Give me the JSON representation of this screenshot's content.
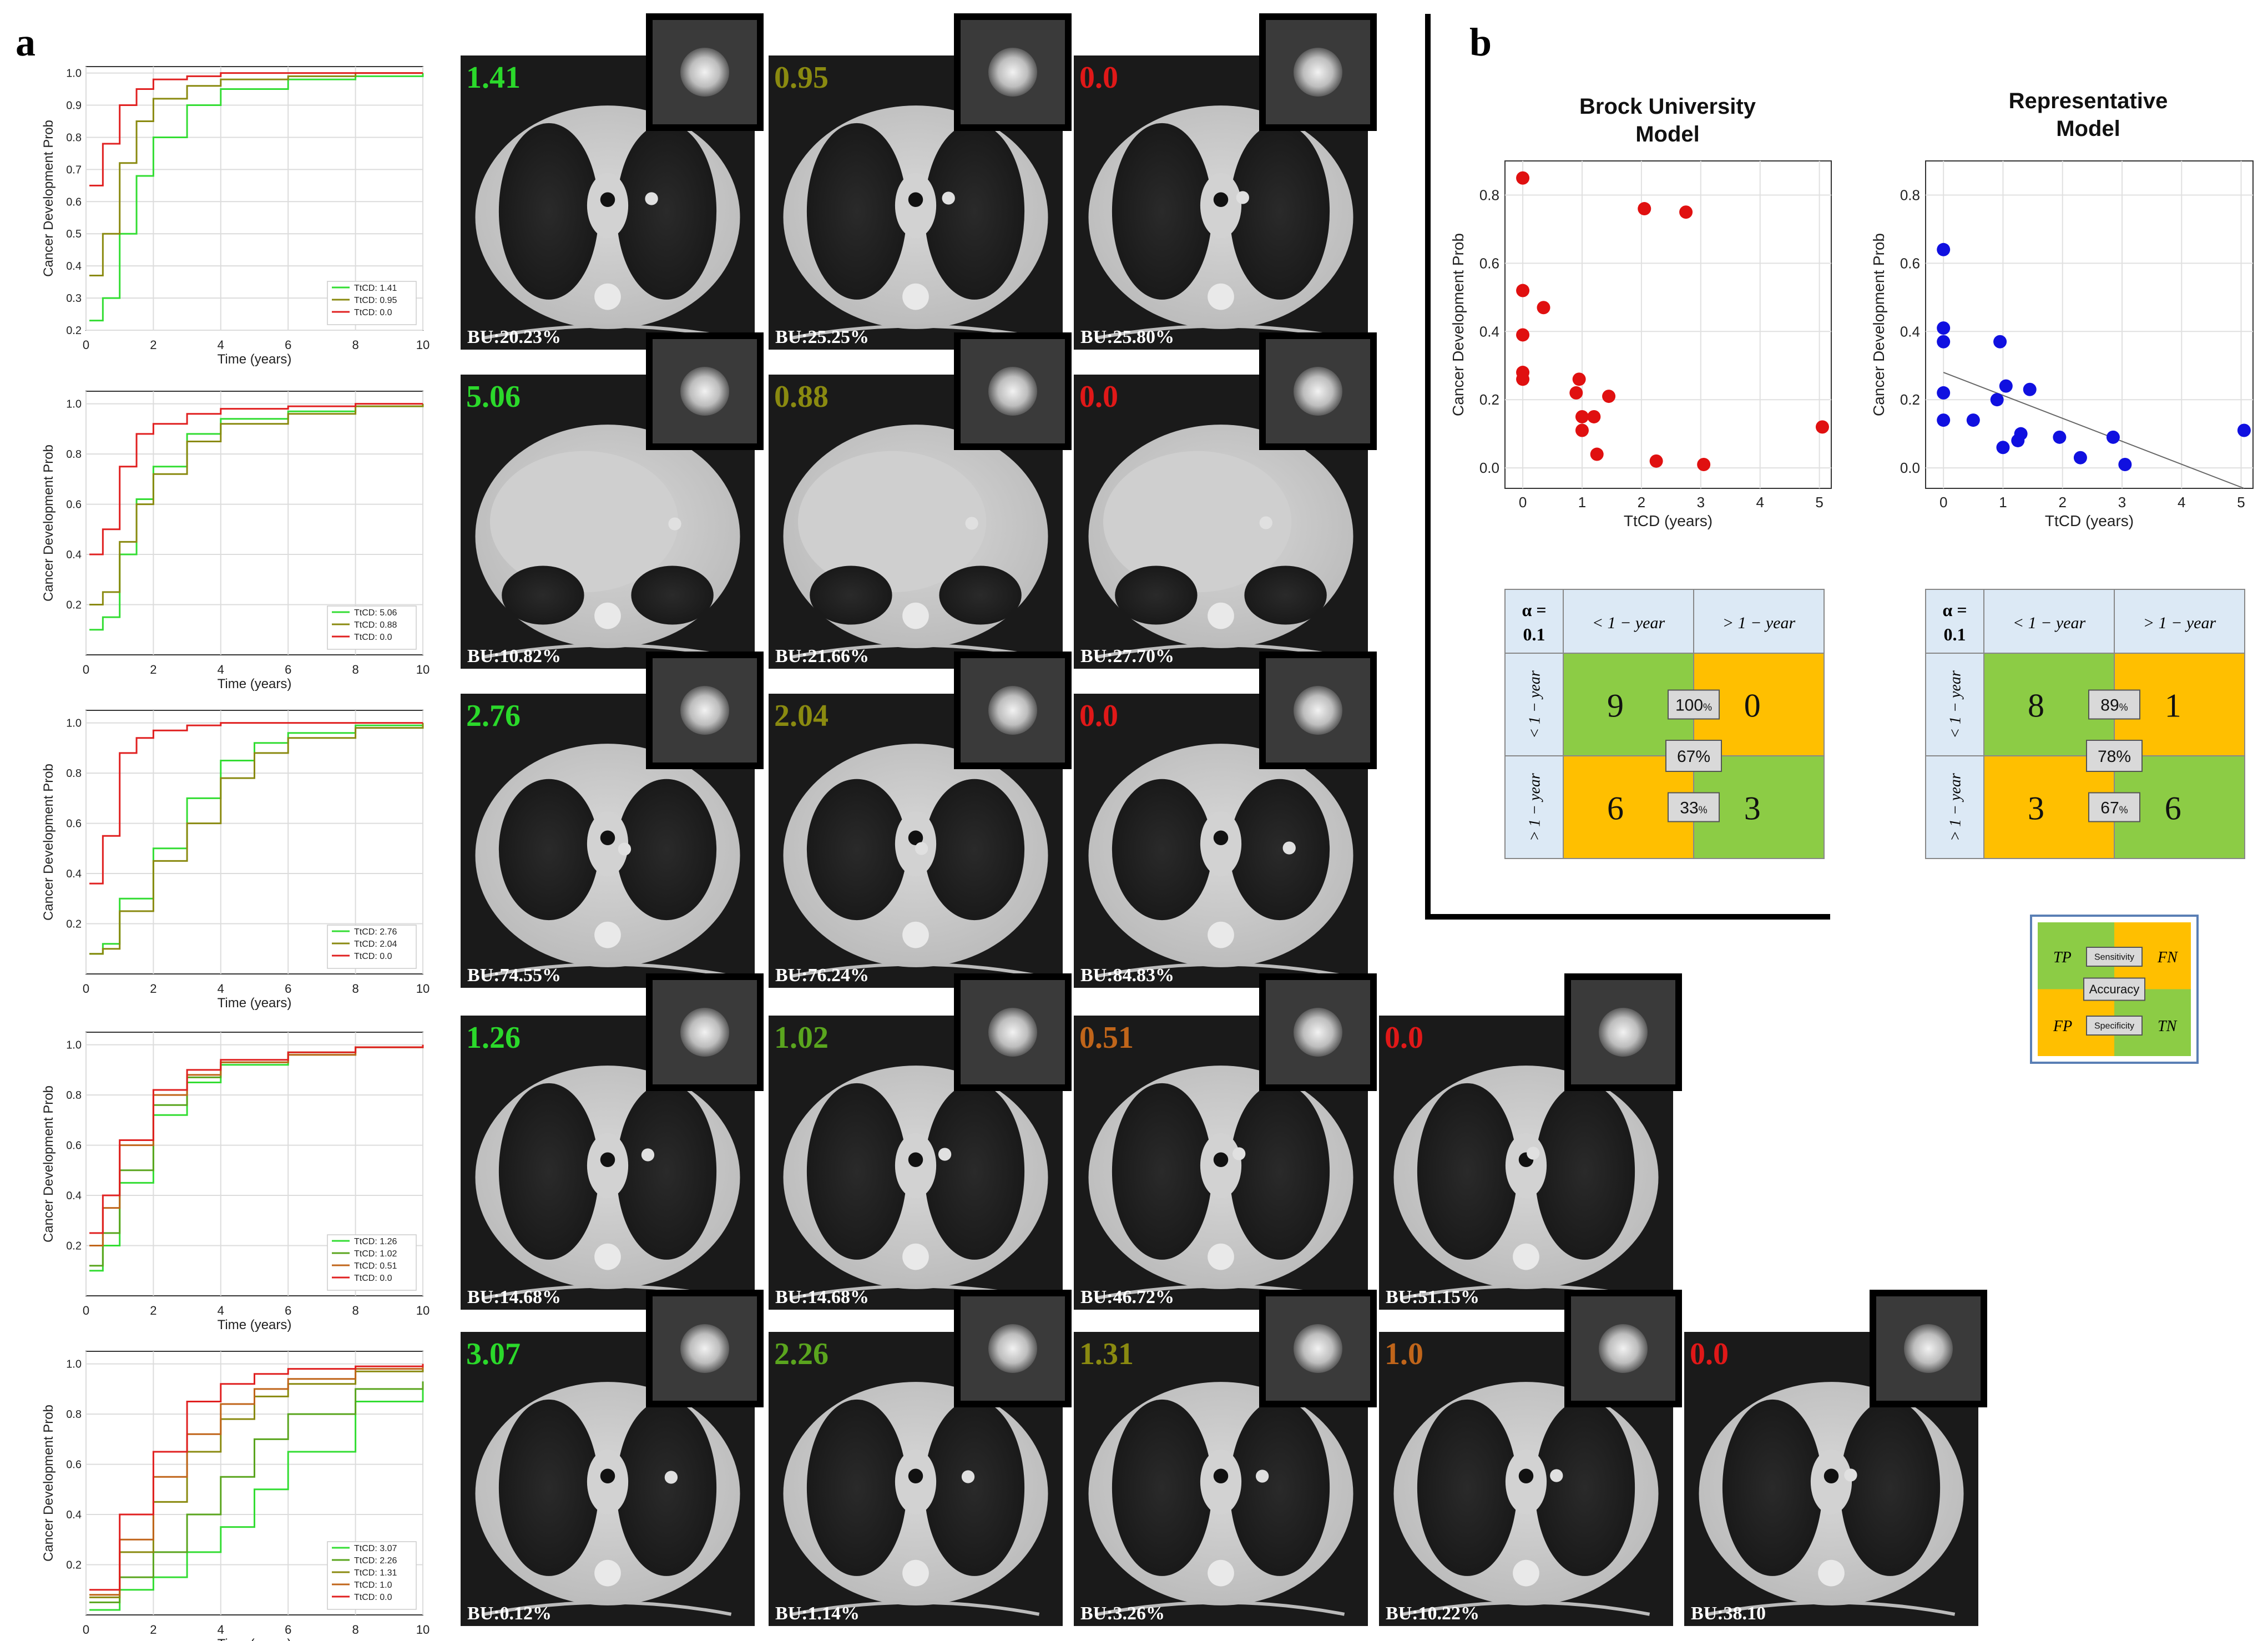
{
  "panel_a": {
    "label": "a",
    "curve_ylabel": "Cancer Development Prob",
    "curve_xlabel": "Time (years)",
    "rows": [
      {
        "legend": [
          "TtCD: 1.41",
          "TtCD: 0.95",
          "TtCD: 0.0"
        ],
        "scans": [
          {
            "ttcd": "1.41",
            "bu": "BU:20.23%",
            "color": "#2bd92b"
          },
          {
            "ttcd": "0.95",
            "bu": "BU:25.25%",
            "color": "#8a8a10"
          },
          {
            "ttcd": "0.0",
            "bu": "BU:25.80%",
            "color": "#e01818"
          }
        ]
      },
      {
        "legend": [
          "TtCD: 5.06",
          "TtCD: 0.88",
          "TtCD: 0.0"
        ],
        "scans": [
          {
            "ttcd": "5.06",
            "bu": "BU:10.82%",
            "color": "#2bd92b"
          },
          {
            "ttcd": "0.88",
            "bu": "BU:21.66%",
            "color": "#8a8a10"
          },
          {
            "ttcd": "0.0",
            "bu": "BU:27.70%",
            "color": "#e01818"
          }
        ]
      },
      {
        "legend": [
          "TtCD: 2.76",
          "TtCD: 2.04",
          "TtCD: 0.0"
        ],
        "scans": [
          {
            "ttcd": "2.76",
            "bu": "BU:74.55%",
            "color": "#2bd92b"
          },
          {
            "ttcd": "2.04",
            "bu": "BU:76.24%",
            "color": "#8a8a10"
          },
          {
            "ttcd": "0.0",
            "bu": "BU:84.83%",
            "color": "#e01818"
          }
        ]
      },
      {
        "legend": [
          "TtCD: 1.26",
          "TtCD: 1.02",
          "TtCD: 0.51",
          "TtCD: 0.0"
        ],
        "scans": [
          {
            "ttcd": "1.26",
            "bu": "BU:14.68%",
            "color": "#2bd92b"
          },
          {
            "ttcd": "1.02",
            "bu": "BU:14.68%",
            "color": "#5aa51e"
          },
          {
            "ttcd": "0.51",
            "bu": "BU:46.72%",
            "color": "#c0651a"
          },
          {
            "ttcd": "0.0",
            "bu": "BU:51.15%",
            "color": "#e01818"
          }
        ]
      },
      {
        "legend": [
          "TtCD: 3.07",
          "TtCD: 2.26",
          "TtCD: 1.31",
          "TtCD: 1.0",
          "TtCD: 0.0"
        ],
        "scans": [
          {
            "ttcd": "3.07",
            "bu": "BU:0.12%",
            "color": "#2bd92b"
          },
          {
            "ttcd": "2.26",
            "bu": "BU:1.14%",
            "color": "#5aa51e"
          },
          {
            "ttcd": "1.31",
            "bu": "BU:3.26%",
            "color": "#8a8a10"
          },
          {
            "ttcd": "1.0",
            "bu": "BU:10.22%",
            "color": "#c0651a"
          },
          {
            "ttcd": "0.0",
            "bu": "BU:38.10",
            "color": "#e01818"
          }
        ]
      }
    ]
  },
  "chart_data": [
    {
      "type": "line",
      "xlabel": "Time (years)",
      "ylabel": "Cancer Development Prob",
      "xlim": [
        0,
        10
      ],
      "ylim": [
        0.2,
        1.02
      ],
      "xticks": [
        0,
        2,
        4,
        6,
        8,
        10
      ],
      "yticks": [
        0.2,
        0.3,
        0.4,
        0.5,
        0.6,
        0.7,
        0.8,
        0.9,
        1.0
      ],
      "series": [
        {
          "name": "TtCD: 1.41",
          "color": "#33dd33",
          "x": [
            0.1,
            0.5,
            1,
            1.5,
            2,
            3,
            4,
            6,
            8,
            10
          ],
          "y": [
            0.23,
            0.3,
            0.5,
            0.68,
            0.8,
            0.9,
            0.95,
            0.98,
            0.99,
            1.0
          ]
        },
        {
          "name": "TtCD: 0.95",
          "color": "#8a8a10",
          "x": [
            0.1,
            0.5,
            1,
            1.5,
            2,
            3,
            4,
            6,
            8,
            10
          ],
          "y": [
            0.37,
            0.5,
            0.72,
            0.85,
            0.92,
            0.96,
            0.98,
            0.99,
            1.0,
            1.0
          ]
        },
        {
          "name": "TtCD: 0.0",
          "color": "#e02020",
          "x": [
            0.1,
            0.5,
            1,
            1.5,
            2,
            3,
            4,
            6,
            8,
            10
          ],
          "y": [
            0.65,
            0.78,
            0.9,
            0.95,
            0.98,
            0.99,
            1.0,
            1.0,
            1.0,
            1.0
          ]
        }
      ]
    },
    {
      "type": "line",
      "xlabel": "Time (years)",
      "ylabel": "Cancer Development Prob",
      "xlim": [
        0,
        10
      ],
      "ylim": [
        0.0,
        1.05
      ],
      "xticks": [
        0,
        2,
        4,
        6,
        8,
        10
      ],
      "yticks": [
        0.2,
        0.4,
        0.6,
        0.8,
        1.0
      ],
      "series": [
        {
          "name": "TtCD: 5.06",
          "color": "#33dd33",
          "x": [
            0.1,
            0.5,
            1,
            1.5,
            2,
            3,
            4,
            6,
            8,
            10
          ],
          "y": [
            0.1,
            0.15,
            0.4,
            0.62,
            0.75,
            0.88,
            0.94,
            0.97,
            0.99,
            1.0
          ]
        },
        {
          "name": "TtCD: 0.88",
          "color": "#8a8a10",
          "x": [
            0.1,
            0.5,
            1,
            1.5,
            2,
            3,
            4,
            6,
            8,
            10
          ],
          "y": [
            0.2,
            0.25,
            0.45,
            0.6,
            0.72,
            0.85,
            0.92,
            0.96,
            0.99,
            1.0
          ]
        },
        {
          "name": "TtCD: 0.0",
          "color": "#e02020",
          "x": [
            0.1,
            0.5,
            1,
            1.5,
            2,
            3,
            4,
            6,
            8,
            10
          ],
          "y": [
            0.4,
            0.5,
            0.75,
            0.88,
            0.92,
            0.96,
            0.98,
            0.99,
            1.0,
            1.0
          ]
        }
      ]
    },
    {
      "type": "line",
      "xlabel": "Time (years)",
      "ylabel": "Cancer Development Prob",
      "xlim": [
        0,
        10
      ],
      "ylim": [
        0.0,
        1.05
      ],
      "xticks": [
        0,
        2,
        4,
        6,
        8,
        10
      ],
      "yticks": [
        0.2,
        0.4,
        0.6,
        0.8,
        1.0
      ],
      "series": [
        {
          "name": "TtCD: 2.76",
          "color": "#33dd33",
          "x": [
            0.1,
            0.5,
            1,
            2,
            3,
            4,
            5,
            6,
            8,
            10
          ],
          "y": [
            0.08,
            0.12,
            0.3,
            0.5,
            0.7,
            0.85,
            0.92,
            0.96,
            0.99,
            1.0
          ]
        },
        {
          "name": "TtCD: 2.04",
          "color": "#8a8a10",
          "x": [
            0.1,
            0.5,
            1,
            2,
            3,
            4,
            5,
            6,
            8,
            10
          ],
          "y": [
            0.08,
            0.1,
            0.25,
            0.45,
            0.6,
            0.78,
            0.88,
            0.94,
            0.98,
            1.0
          ]
        },
        {
          "name": "TtCD: 0.0",
          "color": "#e02020",
          "x": [
            0.1,
            0.5,
            1,
            1.5,
            2,
            3,
            4,
            6,
            8,
            10
          ],
          "y": [
            0.36,
            0.55,
            0.88,
            0.94,
            0.97,
            0.99,
            1.0,
            1.0,
            1.0,
            1.0
          ]
        }
      ]
    },
    {
      "type": "line",
      "xlabel": "Time (years)",
      "ylabel": "Cancer Development Prob",
      "xlim": [
        0,
        10
      ],
      "ylim": [
        0.0,
        1.05
      ],
      "xticks": [
        0,
        2,
        4,
        6,
        8,
        10
      ],
      "yticks": [
        0.2,
        0.4,
        0.6,
        0.8,
        1.0
      ],
      "series": [
        {
          "name": "TtCD: 1.26",
          "color": "#33dd33",
          "x": [
            0.1,
            0.5,
            1,
            2,
            3,
            4,
            6,
            8,
            10
          ],
          "y": [
            0.1,
            0.2,
            0.45,
            0.72,
            0.85,
            0.92,
            0.96,
            0.99,
            1.0
          ]
        },
        {
          "name": "TtCD: 1.02",
          "color": "#5aa51e",
          "x": [
            0.1,
            0.5,
            1,
            2,
            3,
            4,
            6,
            8,
            10
          ],
          "y": [
            0.12,
            0.25,
            0.5,
            0.76,
            0.87,
            0.93,
            0.97,
            0.99,
            1.0
          ]
        },
        {
          "name": "TtCD: 0.51",
          "color": "#c0651a",
          "x": [
            0.1,
            0.5,
            1,
            2,
            3,
            4,
            6,
            8,
            10
          ],
          "y": [
            0.2,
            0.35,
            0.6,
            0.8,
            0.88,
            0.93,
            0.96,
            0.99,
            1.0
          ]
        },
        {
          "name": "TtCD: 0.0",
          "color": "#e02020",
          "x": [
            0.1,
            0.5,
            1,
            2,
            3,
            4,
            6,
            8,
            10
          ],
          "y": [
            0.25,
            0.4,
            0.62,
            0.82,
            0.9,
            0.94,
            0.97,
            0.99,
            1.0
          ]
        }
      ]
    },
    {
      "type": "line",
      "xlabel": "Time (years)",
      "ylabel": "Cancer Development Prob",
      "xlim": [
        0,
        10
      ],
      "ylim": [
        0.0,
        1.05
      ],
      "xticks": [
        0,
        2,
        4,
        6,
        8,
        10
      ],
      "yticks": [
        0.2,
        0.4,
        0.6,
        0.8,
        1.0
      ],
      "series": [
        {
          "name": "TtCD: 3.07",
          "color": "#33dd33",
          "x": [
            0.1,
            1,
            2,
            3,
            4,
            5,
            6,
            8,
            10
          ],
          "y": [
            0.02,
            0.1,
            0.15,
            0.25,
            0.35,
            0.5,
            0.65,
            0.85,
            0.9
          ]
        },
        {
          "name": "TtCD: 2.26",
          "color": "#5aa51e",
          "x": [
            0.1,
            1,
            2,
            3,
            4,
            5,
            6,
            8,
            10
          ],
          "y": [
            0.05,
            0.15,
            0.25,
            0.4,
            0.55,
            0.7,
            0.8,
            0.9,
            0.93
          ]
        },
        {
          "name": "TtCD: 1.31",
          "color": "#8a8a10",
          "x": [
            0.1,
            1,
            2,
            3,
            4,
            5,
            6,
            8,
            10
          ],
          "y": [
            0.07,
            0.25,
            0.45,
            0.65,
            0.78,
            0.87,
            0.92,
            0.97,
            0.99
          ]
        },
        {
          "name": "TtCD: 1.0",
          "color": "#c0651a",
          "x": [
            0.1,
            1,
            2,
            3,
            4,
            5,
            6,
            8,
            10
          ],
          "y": [
            0.08,
            0.3,
            0.55,
            0.72,
            0.84,
            0.9,
            0.94,
            0.98,
            1.0
          ]
        },
        {
          "name": "TtCD: 0.0",
          "color": "#e02020",
          "x": [
            0.1,
            1,
            2,
            3,
            4,
            5,
            6,
            8,
            10
          ],
          "y": [
            0.1,
            0.4,
            0.65,
            0.85,
            0.92,
            0.96,
            0.98,
            0.99,
            1.0
          ]
        }
      ]
    },
    {
      "type": "scatter",
      "title": "Brock University Model",
      "xlabel": "TtCD (years)",
      "ylabel": "Cancer Development Prob",
      "xlim": [
        -0.3,
        5.2
      ],
      "ylim": [
        -0.06,
        0.9
      ],
      "xticks": [
        0,
        1,
        2,
        3,
        4,
        5
      ],
      "yticks": [
        0.0,
        0.2,
        0.4,
        0.6,
        0.8
      ],
      "color": "#e01010",
      "x": [
        0,
        0,
        0,
        0,
        0,
        0.35,
        0.9,
        0.95,
        1.0,
        1.0,
        1.2,
        1.25,
        1.45,
        2.05,
        2.25,
        2.75,
        3.05,
        5.05
      ],
      "y": [
        0.85,
        0.52,
        0.39,
        0.28,
        0.26,
        0.47,
        0.22,
        0.26,
        0.11,
        0.15,
        0.15,
        0.04,
        0.21,
        0.76,
        0.02,
        0.75,
        0.01,
        0.12
      ]
    },
    {
      "type": "scatter",
      "title": "Representative Model",
      "xlabel": "TtCD (years)",
      "ylabel": "Cancer Development Prob",
      "xlim": [
        -0.3,
        5.2
      ],
      "ylim": [
        -0.06,
        0.9
      ],
      "xticks": [
        0,
        1,
        2,
        3,
        4,
        5
      ],
      "yticks": [
        0.0,
        0.2,
        0.4,
        0.6,
        0.8
      ],
      "color": "#1010e0",
      "x": [
        0,
        0,
        0,
        0,
        0,
        0.5,
        0.9,
        0.95,
        1.0,
        1.05,
        1.25,
        1.3,
        1.45,
        1.95,
        2.3,
        2.85,
        3.05,
        5.05
      ],
      "y": [
        0.64,
        0.41,
        0.37,
        0.22,
        0.14,
        0.14,
        0.2,
        0.37,
        0.06,
        0.24,
        0.08,
        0.1,
        0.23,
        0.09,
        0.03,
        0.09,
        0.01,
        0.11
      ],
      "trend": {
        "x": [
          0,
          5.05
        ],
        "y": [
          0.28,
          -0.06
        ]
      }
    }
  ],
  "panel_b": {
    "label": "b",
    "scatter_titles": [
      "Brock University\nModel",
      "Representative\nModel"
    ],
    "scatter_xlabel": "TtCD (years)",
    "scatter_ylabel": "Cancer Development Prob",
    "matrices": [
      {
        "alpha": "α =",
        "alpha_val": "0.1",
        "col1": "< 1 − year",
        "col2": "> 1 − year",
        "row1": "< 1 − year",
        "row2": "> 1 − year",
        "tp": "9",
        "fn": "0",
        "fp": "6",
        "tn": "3",
        "sens": "100",
        "spec": "33",
        "acc": "67%",
        "pct": "%"
      },
      {
        "alpha": "α =",
        "alpha_val": "0.1",
        "col1": "< 1 − year",
        "col2": "> 1 − year",
        "row1": "< 1 − year",
        "row2": "> 1 − year",
        "tp": "8",
        "fn": "1",
        "fp": "3",
        "tn": "6",
        "sens": "89",
        "spec": "67",
        "acc": "78%",
        "pct": "%"
      }
    ],
    "legend_box": {
      "tp": "TP",
      "fn": "FN",
      "fp": "FP",
      "tn": "TN",
      "sens": "Sensitivity",
      "acc": "Accuracy",
      "spec": "Specificity"
    }
  },
  "colors": {
    "green_cell": "#8ccc45",
    "orange_cell": "#ffbf00",
    "header_cell": "#dce9f5",
    "grey_badge": "#d9d9d9"
  }
}
